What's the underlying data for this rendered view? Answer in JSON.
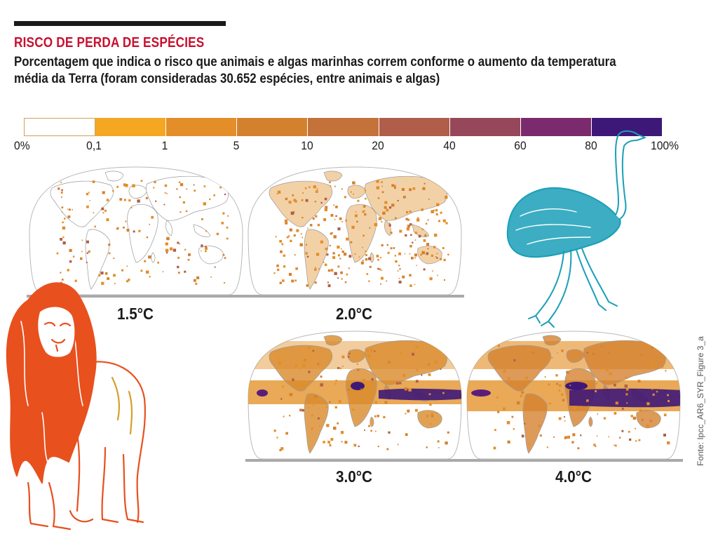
{
  "header": {
    "kicker": "RISCO DE PERDA DE ESPÉCIES",
    "subtitle": "Porcentagem que indica o risco que animais e algas marinhas correm conforme o aumento da temperatura média da Terra (foram consideradas 30.652 espécies, entre animais e algas)"
  },
  "legend": {
    "ticks": [
      "0%",
      "0,1",
      "1",
      "5",
      "10",
      "20",
      "40",
      "60",
      "80",
      "100%"
    ],
    "colors": [
      "#ffffff",
      "#f5a623",
      "#e38e29",
      "#d4812e",
      "#c4713a",
      "#b05e4a",
      "#96475a",
      "#7b2b6d",
      "#5c1d7a",
      "#3e1878"
    ]
  },
  "maps": [
    {
      "label": "1.5°C",
      "level": 1
    },
    {
      "label": "2.0°C",
      "level": 2
    },
    {
      "label": "3.0°C",
      "level": 3
    },
    {
      "label": "4.0°C",
      "level": 4
    }
  ],
  "icons": {
    "lion": "lion-illustration",
    "rhea": "rhea-bird-illustration"
  },
  "source": "Fonte: Ipcc_AR6_SYR_Figure 3_a"
}
